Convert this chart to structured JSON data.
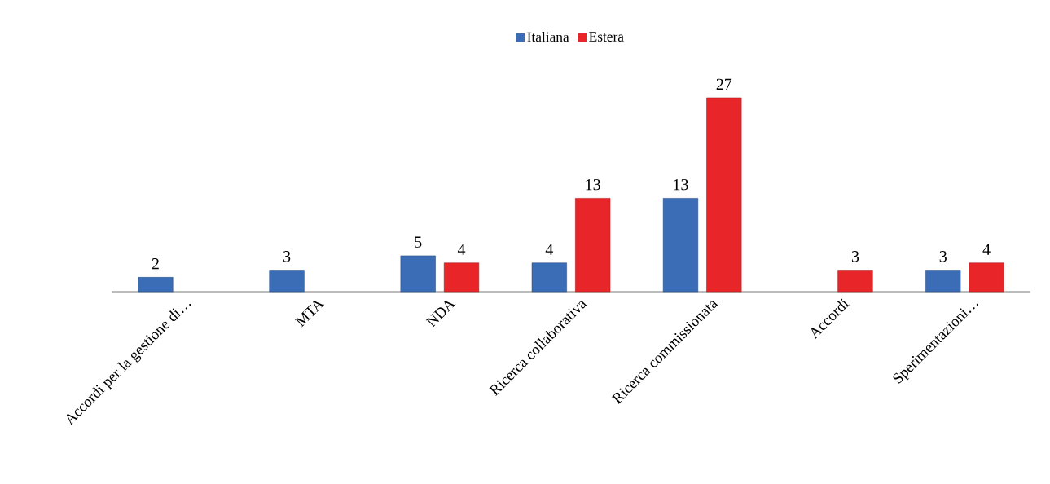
{
  "chart_data": {
    "type": "bar",
    "categories": [
      "Accordi per la gestione di…",
      "MTA",
      "NDA",
      "Ricerca collaborativa",
      "Ricerca commissionata",
      "Accordi",
      "Sperimentazioni…"
    ],
    "series": [
      {
        "name": "Italiana",
        "color": "#3a6db5",
        "values": [
          2,
          3,
          5,
          4,
          13,
          null,
          3
        ]
      },
      {
        "name": "Estera",
        "color": "#e8262a",
        "values": [
          null,
          null,
          4,
          13,
          27,
          3,
          4
        ]
      }
    ],
    "data_labels": true,
    "legend": "top"
  }
}
